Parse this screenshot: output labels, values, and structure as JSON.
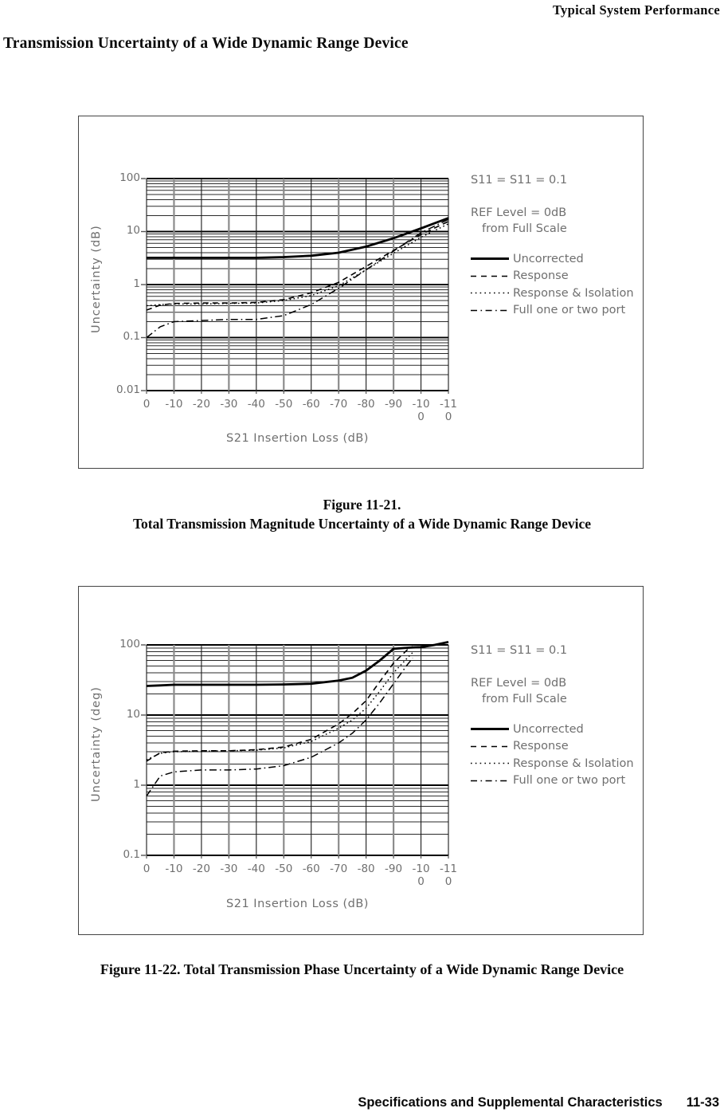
{
  "page": {
    "header": "Typical System Performance",
    "title": "Transmission Uncertainty of a Wide Dynamic Range Device",
    "figure1_caption_line1": "Figure 11-21.",
    "figure1_caption_line2": "Total Transmission Magnitude Uncertainty of a Wide Dynamic Range Device",
    "figure2_caption": "Figure 11-22. Total Transmission Phase Uncertainty of a Wide Dynamic Range Device",
    "footer_text": "Specifications and Supplemental Characteristics",
    "footer_page": "11-33"
  },
  "colors": {
    "background": "#ffffff",
    "text": "#0a0a0a",
    "chart_text": "#6f6f6f",
    "grid_major": "#000000",
    "grid_minor": "#2a2a2a",
    "grid_vertical_alt": "#8c8c8c",
    "curve": "#000000",
    "frame_border": "#444444"
  },
  "chart_data": [
    {
      "type": "line",
      "id": "magnitude-uncertainty",
      "xlabel": "S21 Insertion Loss (dB)",
      "ylabel": "Uncertainty (dB)",
      "x_scale": "linear",
      "y_scale": "log",
      "xlim": [
        0,
        -110
      ],
      "ylim": [
        0.01,
        100
      ],
      "grid": true,
      "legend_position": "right",
      "annotations": [
        "S11 = S11 = 0.1",
        "REF Level = 0dB",
        "from Full Scale"
      ],
      "x_ticks": [
        0,
        -10,
        -20,
        -30,
        -40,
        -50,
        -60,
        -70,
        -80,
        -90,
        -100,
        -110
      ],
      "x_tick_labels": [
        [
          "0"
        ],
        [
          "-10"
        ],
        [
          "-20"
        ],
        [
          "-30"
        ],
        [
          "-40"
        ],
        [
          "-50"
        ],
        [
          "-60"
        ],
        [
          "-70"
        ],
        [
          "-80"
        ],
        [
          "-90"
        ],
        [
          "-10",
          "0"
        ],
        [
          "-11",
          "0"
        ]
      ],
      "y_ticks": [
        100,
        10,
        1,
        0.1,
        0.01
      ],
      "y_tick_labels": [
        "100",
        "10",
        "1",
        "0.1",
        "0.01"
      ],
      "x": [
        0,
        -5,
        -10,
        -20,
        -30,
        -40,
        -50,
        -60,
        -70,
        -80,
        -90,
        -100,
        -110
      ],
      "series": [
        {
          "name": "Uncorrected",
          "style": "solid",
          "values": [
            3.2,
            3.2,
            3.2,
            3.2,
            3.2,
            3.2,
            3.3,
            3.5,
            4.0,
            5.2,
            7.5,
            11.5,
            18
          ]
        },
        {
          "name": "Response",
          "style": "dashed",
          "values": [
            0.33,
            0.41,
            0.44,
            0.45,
            0.45,
            0.46,
            0.52,
            0.7,
            1.1,
            2.2,
            4.4,
            8.8,
            15.5
          ]
        },
        {
          "name": "Response & Isolation",
          "style": "dotted",
          "values": [
            0.4,
            0.42,
            0.43,
            0.43,
            0.44,
            0.45,
            0.5,
            0.62,
            0.95,
            1.9,
            3.9,
            7.8,
            14
          ]
        },
        {
          "name": "Full one or two port",
          "style": "dashdot",
          "values": [
            0.1,
            0.16,
            0.2,
            0.21,
            0.22,
            0.22,
            0.26,
            0.42,
            0.85,
            1.9,
            4.3,
            9.5,
            17
          ]
        }
      ]
    },
    {
      "type": "line",
      "id": "phase-uncertainty",
      "xlabel": "S21 Insertion Loss (dB)",
      "ylabel": "Uncertainty (deg)",
      "x_scale": "linear",
      "y_scale": "log",
      "xlim": [
        0,
        -110
      ],
      "ylim": [
        0.1,
        100
      ],
      "grid": true,
      "legend_position": "right",
      "annotations": [
        "S11 = S11 = 0.1",
        "REF Level = 0dB",
        "from Full Scale"
      ],
      "x_ticks": [
        0,
        -10,
        -20,
        -30,
        -40,
        -50,
        -60,
        -70,
        -80,
        -90,
        -100,
        -110
      ],
      "x_tick_labels": [
        [
          "0"
        ],
        [
          "-10"
        ],
        [
          "-20"
        ],
        [
          "-30"
        ],
        [
          "-40"
        ],
        [
          "-50"
        ],
        [
          "-60"
        ],
        [
          "-70"
        ],
        [
          "-80"
        ],
        [
          "-90"
        ],
        [
          "-10",
          "0"
        ],
        [
          "-11",
          "0"
        ]
      ],
      "y_ticks": [
        100,
        10,
        1,
        0.1
      ],
      "y_tick_labels": [
        "100",
        "10",
        "1",
        "0.1"
      ],
      "x": [
        0,
        -5,
        -10,
        -20,
        -30,
        -40,
        -50,
        -60,
        -70,
        -75,
        -80,
        -85,
        -90,
        -95,
        -97,
        -100,
        -105,
        -110
      ],
      "series": [
        {
          "name": "Uncorrected",
          "style": "solid",
          "values": [
            26,
            26.5,
            27,
            27,
            27,
            27,
            27.3,
            28,
            31,
            34,
            43,
            60,
            88,
            91,
            92,
            93,
            100,
            110
          ]
        },
        {
          "name": "Response",
          "style": "dashed",
          "values": [
            2.2,
            2.9,
            3.05,
            3.1,
            3.1,
            3.2,
            3.5,
            4.5,
            7.5,
            10.5,
            16,
            30,
            55,
            85,
            95,
            null,
            null,
            null
          ]
        },
        {
          "name": "Response & Isolation",
          "style": "dotted",
          "values": [
            2.3,
            2.85,
            3.0,
            3.05,
            3.1,
            3.15,
            3.4,
            4.2,
            6.5,
            8.5,
            12.5,
            22,
            40,
            65,
            78,
            null,
            null,
            null
          ]
        },
        {
          "name": "Full one or two port",
          "style": "dashdot",
          "values": [
            0.7,
            1.35,
            1.55,
            1.65,
            1.65,
            1.7,
            1.9,
            2.5,
            4.0,
            5.5,
            8.5,
            15,
            28,
            52,
            65,
            null,
            null,
            null
          ]
        }
      ]
    }
  ]
}
